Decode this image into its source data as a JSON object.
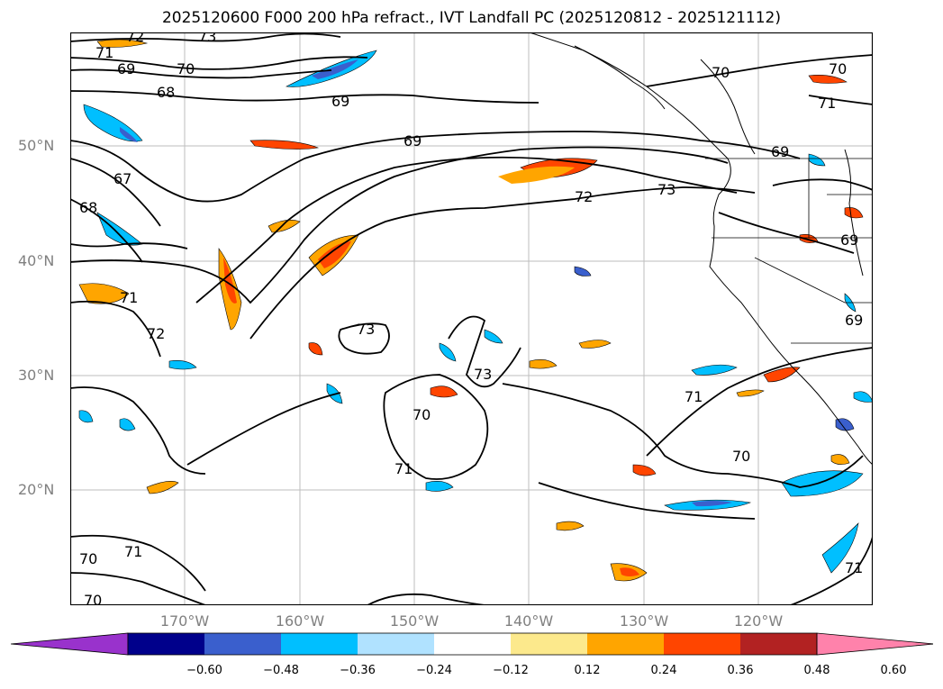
{
  "title": "2025120600 F000 200 hPa refract., IVT Landfall PC (2025120812 - 2025121112)",
  "map": {
    "lat_labels": [
      "50°N",
      "40°N",
      "30°N",
      "20°N"
    ],
    "lon_labels": [
      "170°W",
      "160°W",
      "150°W",
      "140°W",
      "130°W",
      "120°W"
    ],
    "contour_labels": [
      "72",
      "73",
      "71",
      "69",
      "70",
      "68",
      "69",
      "70",
      "67",
      "68",
      "69",
      "72",
      "73",
      "71",
      "72",
      "73",
      "73",
      "70",
      "71",
      "71",
      "70",
      "69",
      "70",
      "71",
      "71",
      "70",
      "69",
      "69",
      "71",
      "70"
    ]
  },
  "colorbar": {
    "colors": [
      "#9932cc",
      "#00008b",
      "#3a5fcd",
      "#00bfff",
      "#b0e2ff",
      "#ffffff",
      "#fce98c",
      "#ffa500",
      "#ff4500",
      "#b22222",
      "#ff82ab"
    ],
    "tick_labels": [
      "−0.60",
      "−0.48",
      "−0.36",
      "−0.24",
      "−0.12",
      "0.12",
      "0.24",
      "0.36",
      "0.48",
      "0.60"
    ]
  }
}
